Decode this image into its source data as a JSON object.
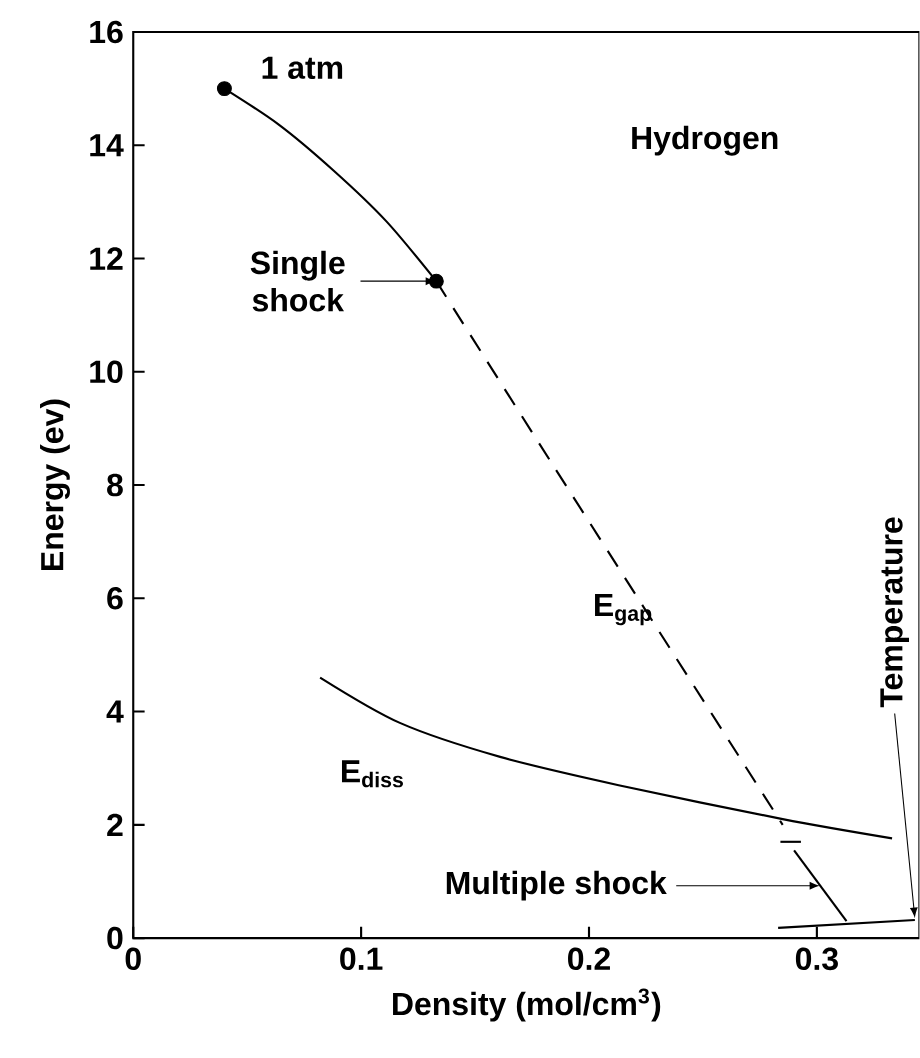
{
  "chart_data": {
    "type": "line",
    "xlabel": "Density (mol/cm$^{3}$)",
    "ylabel": "Energy (ev)",
    "xlim": [
      0,
      0.345
    ],
    "ylim": [
      0,
      16
    ],
    "xticks": [
      0,
      0.1,
      0.2,
      0.3
    ],
    "yticks": [
      0,
      2,
      4,
      6,
      8,
      10,
      12,
      14,
      16
    ],
    "grid": false,
    "legend": false,
    "series": [
      {
        "color": "#000000",
        "line_style": "solid",
        "x": [
          0.04,
          0.064,
          0.088,
          0.111,
          0.133
        ],
        "values": [
          15.0,
          14.36,
          13.55,
          12.66,
          11.6
        ]
      },
      {
        "name": "E$_{gap}$",
        "color": "#000000",
        "line_style": "dashed",
        "x": [
          0.133,
          0.185,
          0.285
        ],
        "values": [
          11.6,
          8.3,
          2.0
        ]
      },
      {
        "type": "scatter",
        "marker": "circle",
        "color": "#000000",
        "x": [
          0.04,
          0.133
        ],
        "values": [
          15.0,
          11.6
        ]
      },
      {
        "name": "E$_{diss}$",
        "color": "#000000",
        "line_style": "solid",
        "x": [
          0.082,
          0.117,
          0.161,
          0.213,
          0.285,
          0.333
        ],
        "values": [
          4.6,
          3.8,
          3.2,
          2.7,
          2.1,
          1.76
        ]
      },
      {
        "color": "#000000",
        "line_style": "solid",
        "x": [
          0.284,
          0.293
        ],
        "values": [
          1.7,
          1.7
        ]
      },
      {
        "color": "#000000",
        "line_style": "solid",
        "x": [
          0.29,
          0.313
        ],
        "values": [
          1.55,
          0.3
        ]
      },
      {
        "color": "#000000",
        "line_style": "solid",
        "x": [
          0.283,
          0.343
        ],
        "values": [
          0.18,
          0.32
        ]
      }
    ],
    "annotations": [
      {
        "text": "1 atm",
        "x": 0.04,
        "y": 15.0
      },
      {
        "text": "Single shock",
        "x": 0.133,
        "y": 11.6
      },
      "Multiple shock",
      {
        "text": "Temperature",
        "x": 0.343,
        "y": 0.35
      },
      "Hydrogen"
    ]
  }
}
